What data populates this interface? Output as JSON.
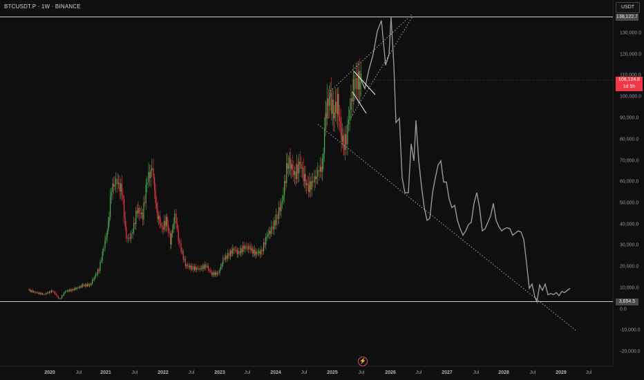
{
  "header": {
    "symbol_label": "BTCUSDT.P · 1W · BINANCE"
  },
  "currency_button": {
    "label": "USDT"
  },
  "price_axis": {
    "labels": [
      "130,000.0",
      "120,000.0",
      "110,000.0",
      "100,000.0",
      "90,000.0",
      "80,000.0",
      "70,000.0",
      "60,000.0",
      "50,000.0",
      "40,000.0",
      "30,000.0",
      "20,000.0",
      "10,000.0",
      "0.0",
      "-10,000.0",
      "-20,000.0"
    ]
  },
  "time_axis": {
    "labels": [
      {
        "text": "2020",
        "year": true
      },
      {
        "text": "Jul",
        "year": false
      },
      {
        "text": "2021",
        "year": true
      },
      {
        "text": "Jul",
        "year": false
      },
      {
        "text": "2022",
        "year": true
      },
      {
        "text": "Jul",
        "year": false
      },
      {
        "text": "2023",
        "year": true
      },
      {
        "text": "Jul",
        "year": false
      },
      {
        "text": "2024",
        "year": true
      },
      {
        "text": "Jul",
        "year": false
      },
      {
        "text": "2025",
        "year": true
      },
      {
        "text": "Jul",
        "year": false
      },
      {
        "text": "2026",
        "year": true
      },
      {
        "text": "Jul",
        "year": false
      },
      {
        "text": "2027",
        "year": true
      },
      {
        "text": "Jul",
        "year": false
      },
      {
        "text": "2028",
        "year": true
      },
      {
        "text": "Jul",
        "year": false
      },
      {
        "text": "2029",
        "year": true
      },
      {
        "text": "Jul",
        "year": false
      }
    ]
  },
  "horizontal_levels": {
    "top": "138,122.7",
    "bottom": "3,654.5"
  },
  "last_price": {
    "value": "108,124.8",
    "countdown": "1d 5h"
  },
  "colors": {
    "up": "#4caf50",
    "down": "#f23645",
    "projection": "#9a9a9a",
    "background": "#0f0f0f"
  },
  "icons": {
    "footer_logo": "tradingview-lightning-icon"
  }
}
